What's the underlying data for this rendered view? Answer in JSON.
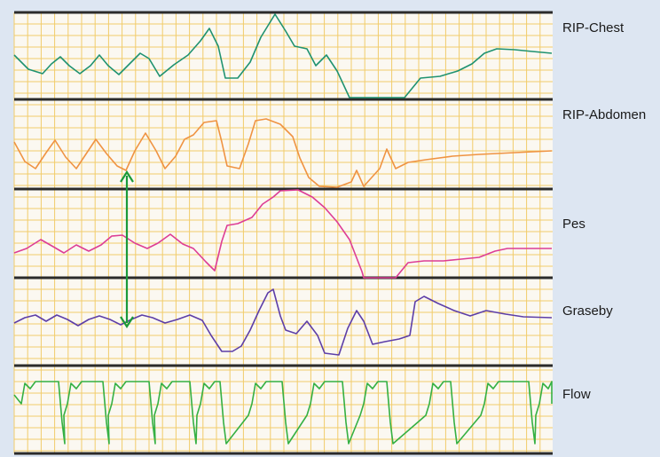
{
  "figure": {
    "grid_color": "#f2cc6a",
    "separator_color": "#2b2b2b",
    "marker_color": "#1a9a3a"
  },
  "channels": [
    {
      "label": "RIP-Chest",
      "color": "#1f9270",
      "icon": "waveform"
    },
    {
      "label": "RIP-Abdomen",
      "color": "#ef9342",
      "icon": "waveform"
    },
    {
      "label": "Pes",
      "color": "#dd3d95",
      "icon": "waveform"
    },
    {
      "label": "Graseby",
      "color": "#5d3ea8",
      "icon": "waveform"
    },
    {
      "label": "Flow",
      "color": "#35b043",
      "icon": "waveform"
    }
  ]
}
